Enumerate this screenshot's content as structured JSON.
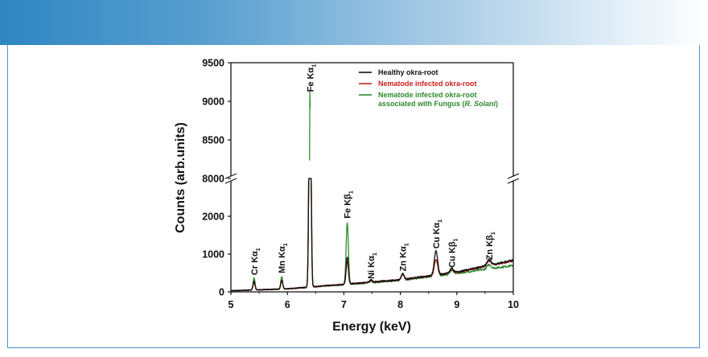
{
  "chart_data": {
    "type": "line",
    "title": "",
    "xlabel": "Energy (keV)",
    "ylabel": "Counts (arb.units)",
    "xlim": [
      5,
      10
    ],
    "y_lower_range": [
      0,
      3000
    ],
    "y_upper_range": [
      8000,
      9500
    ],
    "y_break": [
      3000,
      8000
    ],
    "x_ticks": [
      "5",
      "6",
      "7",
      "8",
      "9",
      "10"
    ],
    "y_ticks": [
      "0",
      "1000",
      "2000",
      "8000",
      "8500",
      "9000",
      "9500"
    ],
    "series": [
      {
        "name": "Healthy okra-root",
        "color": "#111111",
        "baseline": [
          [
            5.0,
            30
          ],
          [
            6.0,
            80
          ],
          [
            7.0,
            200
          ],
          [
            8.0,
            320
          ],
          [
            9.0,
            520
          ],
          [
            10.0,
            840
          ]
        ],
        "peaks": [
          [
            5.41,
            230,
            0.017
          ],
          [
            5.9,
            230,
            0.017
          ],
          [
            6.4,
            7200,
            0.017
          ],
          [
            7.06,
            720,
            0.02
          ],
          [
            7.48,
            60,
            0.02
          ],
          [
            8.04,
            160,
            0.025
          ],
          [
            8.63,
            640,
            0.03
          ],
          [
            8.91,
            120,
            0.03
          ],
          [
            9.57,
            150,
            0.035
          ]
        ]
      },
      {
        "name": "Nematode infected okra-root",
        "color": "#cc1f1f",
        "baseline": [
          [
            5.0,
            30
          ],
          [
            6.0,
            80
          ],
          [
            7.0,
            200
          ],
          [
            8.0,
            320
          ],
          [
            9.0,
            520
          ],
          [
            10.0,
            820
          ]
        ],
        "peaks": [
          [
            5.41,
            200,
            0.017
          ],
          [
            5.9,
            250,
            0.017
          ],
          [
            6.4,
            7000,
            0.017
          ],
          [
            7.06,
            600,
            0.02
          ],
          [
            7.48,
            55,
            0.02
          ],
          [
            8.04,
            140,
            0.025
          ],
          [
            8.63,
            420,
            0.03
          ],
          [
            8.91,
            110,
            0.03
          ],
          [
            9.57,
            130,
            0.035
          ]
        ]
      },
      {
        "name": "Nematode infected okra-root",
        "name_line2": "associated with Fungus (",
        "name_italic": "R. Solani",
        "name_end": ")",
        "color": "#2e8b2e",
        "baseline": [
          [
            5.0,
            30
          ],
          [
            6.0,
            80
          ],
          [
            7.0,
            190
          ],
          [
            8.0,
            300
          ],
          [
            9.0,
            490
          ],
          [
            10.0,
            700
          ]
        ],
        "peaks": [
          [
            5.41,
            320,
            0.017
          ],
          [
            5.9,
            330,
            0.017
          ],
          [
            6.4,
            9050,
            0.017
          ],
          [
            7.06,
            1650,
            0.02
          ],
          [
            7.48,
            50,
            0.02
          ],
          [
            8.04,
            180,
            0.025
          ],
          [
            8.63,
            430,
            0.03
          ],
          [
            8.91,
            100,
            0.03
          ],
          [
            9.57,
            110,
            0.035
          ]
        ]
      }
    ],
    "annotations": [
      {
        "elem": "Cr",
        "line": "Kα",
        "sub": "1",
        "energy": 5.41,
        "counts": 400
      },
      {
        "elem": "Mn",
        "line": "Kα",
        "sub": "1",
        "energy": 5.9,
        "counts": 450
      },
      {
        "elem": "Fe",
        "line": "Kα",
        "sub": "1",
        "energy": 6.4,
        "counts": 9100
      },
      {
        "elem": "Fe",
        "line": "Kβ",
        "sub": "1",
        "energy": 7.06,
        "counts": 1900
      },
      {
        "elem": "Ni",
        "line": "Kα",
        "sub": "1",
        "energy": 7.48,
        "counts": 300
      },
      {
        "elem": "Zn",
        "line": "Kα",
        "sub": "1",
        "energy": 8.04,
        "counts": 500
      },
      {
        "elem": "Cu",
        "line": "Kα",
        "sub": "1",
        "energy": 8.63,
        "counts": 1100
      },
      {
        "elem": "Cu",
        "line": "Kβ",
        "sub": "1",
        "energy": 8.91,
        "counts": 600
      },
      {
        "elem": "Zn",
        "line": "Kβ",
        "sub": "1",
        "energy": 9.57,
        "counts": 800
      }
    ]
  }
}
